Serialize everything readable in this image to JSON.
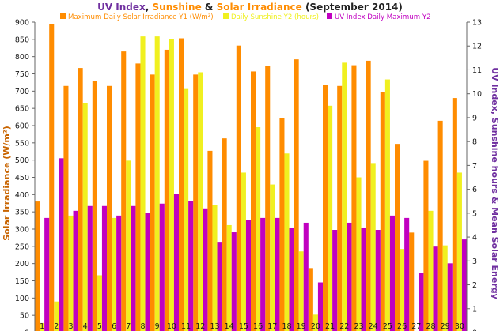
{
  "chart_data": {
    "type": "bar",
    "title_parts": [
      {
        "text": "UV Index",
        "color": "#7030a0"
      },
      {
        "text": ", ",
        "color": "#222222"
      },
      {
        "text": "Sunshine",
        "color": "#ff8c00"
      },
      {
        "text": " & ",
        "color": "#222222"
      },
      {
        "text": "Solar Irradiance",
        "color": "#ff8c00"
      },
      {
        "text": " (September 2014)",
        "color": "#222222"
      }
    ],
    "ylabel_left": "Solar Irradiance (W/m²)",
    "ylabel_right": "UV Index, Sunshine hours & Mean Solar Energy",
    "ylim_left": [
      0,
      900
    ],
    "ylim_right": [
      0,
      13
    ],
    "yticks_left": [
      "0",
      "50",
      "100",
      "150",
      "200",
      "250",
      "300",
      "350",
      "400",
      "450",
      "500",
      "550",
      "600",
      "650",
      "700",
      "750",
      "800",
      "850",
      "900"
    ],
    "yticks_right": [
      "0",
      "1",
      "2",
      "3",
      "4",
      "5",
      "6",
      "7",
      "8",
      "9",
      "10",
      "11",
      "12",
      "13"
    ],
    "categories": [
      "1",
      "2",
      "3",
      "4",
      "5",
      "6",
      "7",
      "8",
      "9",
      "10",
      "11",
      "12",
      "13",
      "14",
      "15",
      "16",
      "17",
      "18",
      "19",
      "20",
      "21",
      "22",
      "23",
      "24",
      "25",
      "26",
      "27",
      "28",
      "29",
      "30"
    ],
    "series": [
      {
        "name": "Maximum Daily Solar Irradiance Y1 (W/m²)",
        "axis": "left",
        "color": "#ff8c00",
        "values": [
          380,
          895,
          715,
          767,
          730,
          715,
          815,
          780,
          748,
          820,
          853,
          748,
          527,
          563,
          832,
          757,
          772,
          621,
          792,
          187,
          718,
          715,
          775,
          788,
          697,
          547,
          290,
          498,
          614,
          680
        ]
      },
      {
        "name": "Daily Sunshine Y2 (hours)",
        "axis": "right",
        "color": "#f0f020",
        "values": [
          0.4,
          1.3,
          4.9,
          9.6,
          2.4,
          4.8,
          7.2,
          12.4,
          12.4,
          12.3,
          10.2,
          10.9,
          5.35,
          4.5,
          6.7,
          8.6,
          6.2,
          7.5,
          3.4,
          0.75,
          9.5,
          11.3,
          6.5,
          7.1,
          10.6,
          3.5,
          0,
          5.1,
          3.65,
          6.7
        ]
      },
      {
        "name": "UV Index Daily Maximum Y2",
        "axis": "right",
        "color": "#c000c0",
        "values": [
          4.8,
          7.3,
          5.1,
          5.3,
          5.3,
          4.9,
          5.3,
          5.0,
          5.4,
          5.8,
          5.5,
          5.2,
          3.8,
          4.2,
          4.7,
          4.8,
          4.8,
          4.4,
          4.6,
          2.1,
          4.3,
          4.6,
          4.4,
          4.3,
          4.9,
          4.8,
          2.5,
          3.6,
          2.9,
          3.9
        ]
      }
    ],
    "legend_position": "top",
    "grid": false
  }
}
